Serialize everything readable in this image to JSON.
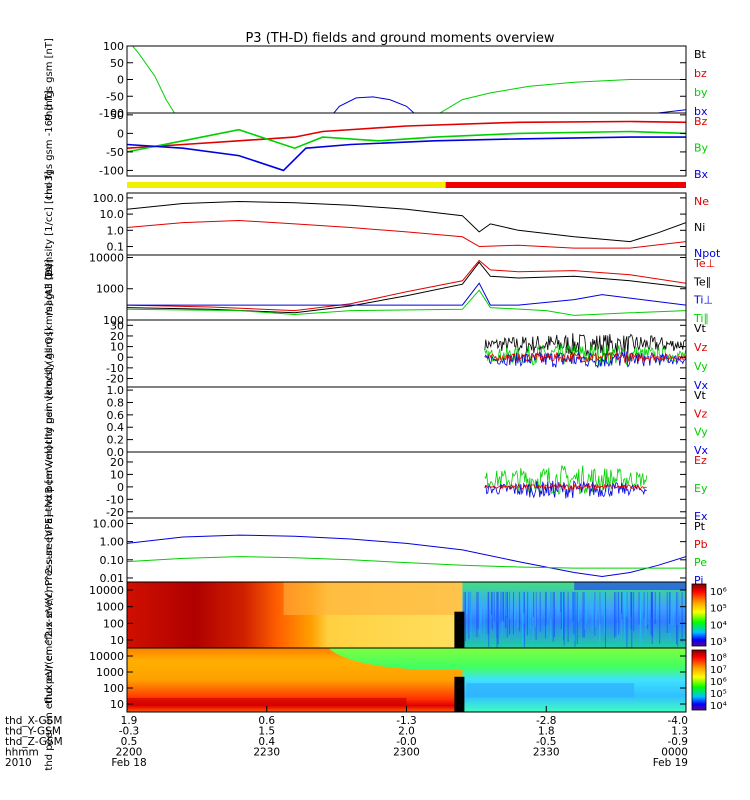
{
  "title": "P3 (TH-D) fields and ground moments overview",
  "colors": {
    "black": "#000000",
    "red": "#e00000",
    "green": "#00d000",
    "blue": "#0000e0",
    "yellow": "#f0f000",
    "barred": "#f00000"
  },
  "chart_data": [
    {
      "type": "line",
      "ylabel": "thd fgs gsm [nT]",
      "yticks": [
        "100",
        "50",
        "0",
        "-50",
        "-100"
      ],
      "ylim": [
        -100,
        100
      ],
      "legend": [
        "Bt",
        "bz",
        "by",
        "bx"
      ],
      "legend_colors": [
        "black",
        "red",
        "green",
        "blue"
      ],
      "series": [
        {
          "name": "by",
          "color": "green",
          "x": [
            0,
            0.02,
            0.05,
            0.07,
            0.1,
            0.54,
            0.56,
            0.6,
            0.65,
            0.72,
            0.8,
            0.9,
            1.0
          ],
          "y": [
            120,
            80,
            10,
            -60,
            -140,
            -140,
            -100,
            -60,
            -40,
            -20,
            -8,
            0,
            0
          ]
        },
        {
          "name": "bx",
          "color": "blue",
          "x": [
            0.36,
            0.38,
            0.41,
            0.44,
            0.47,
            0.5,
            0.52,
            0.54,
            0.85,
            0.9,
            0.95,
            1.0
          ],
          "y": [
            -120,
            -80,
            -55,
            -52,
            -60,
            -80,
            -110,
            -140,
            -140,
            -120,
            -100,
            -90
          ]
        }
      ]
    },
    {
      "type": "line",
      "ylabel": "thd fgs gsm -169 [nT]",
      "yticks": [
        "50",
        "0",
        "-50",
        "-100"
      ],
      "ylim": [
        -115,
        55
      ],
      "legend": [
        "Bz",
        "By",
        "Bx"
      ],
      "legend_colors": [
        "red",
        "green",
        "blue"
      ],
      "series": [
        {
          "name": "Bz",
          "color": "red",
          "x": [
            0,
            0.1,
            0.2,
            0.3,
            0.35,
            0.5,
            0.7,
            0.9,
            1.0
          ],
          "y": [
            -40,
            -30,
            -20,
            -10,
            5,
            20,
            30,
            32,
            30
          ]
        },
        {
          "name": "By",
          "color": "green",
          "x": [
            0,
            0.1,
            0.2,
            0.3,
            0.35,
            0.45,
            0.55,
            0.7,
            0.9,
            1.0
          ],
          "y": [
            -50,
            -20,
            10,
            -40,
            -10,
            -20,
            -10,
            0,
            5,
            0
          ]
        },
        {
          "name": "Bx",
          "color": "blue",
          "x": [
            0,
            0.1,
            0.2,
            0.28,
            0.32,
            0.4,
            0.55,
            0.7,
            0.9,
            1.0
          ],
          "y": [
            -30,
            -40,
            -60,
            -100,
            -40,
            -30,
            -20,
            -15,
            -10,
            -10
          ]
        }
      ]
    },
    {
      "type": "line",
      "ylabel": "Density [1/cc] [cm-3]",
      "yticks": [
        "100.0",
        "10.0",
        "1.0",
        "0.1"
      ],
      "log": true,
      "ylim": [
        0.03,
        200
      ],
      "legend": [
        "Ne",
        "Ni",
        "Npot"
      ],
      "legend_colors": [
        "red",
        "black",
        "blue"
      ],
      "series": [
        {
          "name": "Ni",
          "color": "black",
          "x": [
            0,
            0.1,
            0.2,
            0.3,
            0.4,
            0.5,
            0.6,
            0.63,
            0.65,
            0.7,
            0.8,
            0.9,
            0.95,
            1.0
          ],
          "y": [
            20,
            45,
            60,
            50,
            35,
            20,
            8,
            0.8,
            2.5,
            1.0,
            0.4,
            0.2,
            0.7,
            3
          ]
        },
        {
          "name": "Ne",
          "color": "red",
          "x": [
            0,
            0.1,
            0.2,
            0.3,
            0.4,
            0.5,
            0.6,
            0.63,
            0.7,
            0.8,
            0.9,
            1.0
          ],
          "y": [
            1.5,
            3,
            4,
            2.5,
            1.5,
            0.8,
            0.4,
            0.1,
            0.12,
            0.08,
            0.08,
            0.2
          ]
        }
      ]
    },
    {
      "type": "line",
      "ylabel": "magt3 [eV]",
      "yticks": [
        "10000",
        "1000",
        "100"
      ],
      "log": true,
      "ylim": [
        100,
        12000
      ],
      "legend": [
        "Te⊥",
        "Te∥",
        "Ti⊥",
        "Ti∥"
      ],
      "legend_colors": [
        "red",
        "black",
        "blue",
        "green"
      ],
      "series": [
        {
          "name": "Te⊥",
          "color": "red",
          "x": [
            0,
            0.15,
            0.3,
            0.4,
            0.5,
            0.6,
            0.63,
            0.65,
            0.7,
            0.8,
            0.9,
            1.0
          ],
          "y": [
            300,
            260,
            200,
            330,
            800,
            1800,
            8000,
            4000,
            3500,
            3800,
            2800,
            1500
          ]
        },
        {
          "name": "Te∥",
          "color": "black",
          "x": [
            0,
            0.15,
            0.3,
            0.4,
            0.5,
            0.6,
            0.63,
            0.65,
            0.7,
            0.8,
            0.9,
            1.0
          ],
          "y": [
            250,
            220,
            170,
            280,
            600,
            1400,
            7000,
            2500,
            2200,
            2500,
            1800,
            1100
          ]
        },
        {
          "name": "Ti⊥",
          "color": "blue",
          "x": [
            0,
            0.2,
            0.4,
            0.6,
            0.63,
            0.65,
            0.7,
            0.8,
            0.85,
            0.9,
            1.0
          ],
          "y": [
            300,
            300,
            300,
            300,
            1500,
            300,
            300,
            450,
            650,
            500,
            300
          ]
        },
        {
          "name": "Ti∥",
          "color": "green",
          "x": [
            0,
            0.2,
            0.3,
            0.4,
            0.6,
            0.63,
            0.65,
            0.75,
            0.8,
            0.9,
            1.0
          ],
          "y": [
            220,
            200,
            150,
            200,
            220,
            900,
            250,
            200,
            140,
            170,
            200
          ]
        }
      ]
    },
    {
      "type": "line",
      "ylabel": "thd peir velocity gsm [km/s] (All Qs)",
      "yticks": [
        "30",
        "20",
        "10",
        "0",
        "-10",
        "-20"
      ],
      "ylim": [
        -28,
        35
      ],
      "legend": [
        "Vt",
        "Vz",
        "Vy",
        "Vx"
      ],
      "legend_colors": [
        "black",
        "red",
        "green",
        "blue"
      ],
      "noisy_from": 0.64,
      "series": [
        {
          "name": "Vt",
          "color": "black",
          "center": 12,
          "amp": 9
        },
        {
          "name": "Vy",
          "color": "green",
          "center": 2,
          "amp": 9
        },
        {
          "name": "Vx",
          "color": "blue",
          "center": -2,
          "amp": 7
        },
        {
          "name": "Vz",
          "color": "red",
          "center": 0,
          "amp": 4
        }
      ]
    },
    {
      "type": "line",
      "ylabel": "thd peer velocity gsm [km/s] (All Qs)",
      "yticks": [
        "1.0",
        "0.8",
        "0.6",
        "0.4",
        "0.2",
        "0.0"
      ],
      "ylim": [
        0,
        1.05
      ],
      "legend": [
        "Vt",
        "Vz",
        "Vy",
        "Vx"
      ],
      "legend_colors": [
        "black",
        "red",
        "green",
        "blue"
      ],
      "series": []
    },
    {
      "type": "line",
      "ylabel": "E=-VxB [mV/m]",
      "yticks": [
        "20",
        "10",
        "0",
        "-10",
        "-20"
      ],
      "ylim": [
        -25,
        28
      ],
      "legend": [
        "Ez",
        "Ey",
        "Ex"
      ],
      "legend_colors": [
        "red",
        "green",
        "blue"
      ],
      "noisy_from": 0.64,
      "noisy_to": 0.93,
      "series": [
        {
          "name": "Ey",
          "color": "green",
          "center": 6,
          "amp": 10
        },
        {
          "name": "Ex",
          "color": "blue",
          "center": -2,
          "amp": 6
        },
        {
          "name": "Ez",
          "color": "red",
          "center": 0,
          "amp": 2
        }
      ]
    },
    {
      "type": "line",
      "ylabel": "Pressure [nPa]",
      "yticks": [
        "10.00",
        "1.00",
        "0.10",
        "0.01"
      ],
      "log": true,
      "ylim": [
        0.006,
        20
      ],
      "legend": [
        "Pt",
        "Pb",
        "Pe",
        "Pi"
      ],
      "legend_colors": [
        "black",
        "red",
        "green",
        "blue"
      ],
      "series": [
        {
          "name": "Pi",
          "color": "blue",
          "x": [
            0,
            0.1,
            0.2,
            0.3,
            0.4,
            0.5,
            0.6,
            0.7,
            0.8,
            0.85,
            0.9,
            0.95,
            1.0
          ],
          "y": [
            0.8,
            1.8,
            2.3,
            2.0,
            1.4,
            0.8,
            0.35,
            0.08,
            0.02,
            0.012,
            0.02,
            0.05,
            0.15
          ]
        },
        {
          "name": "Pe",
          "color": "green",
          "x": [
            0,
            0.1,
            0.2,
            0.3,
            0.4,
            0.5,
            0.6,
            0.7,
            0.8,
            0.9,
            1.0
          ],
          "y": [
            0.08,
            0.12,
            0.15,
            0.13,
            0.1,
            0.07,
            0.05,
            0.04,
            0.035,
            0.035,
            0.035
          ]
        }
      ]
    },
    {
      "type": "heatmap",
      "ylabel": "thd peir en eflux eV/(cm^2-s-sr-eV)",
      "yticks": [
        "10000",
        "1000",
        "100",
        "10"
      ],
      "colorbar_ticks": [
        "10⁶",
        "10⁵",
        "10⁴",
        "10³"
      ]
    },
    {
      "type": "heatmap",
      "ylabel": "thd peer en eflux eV/(cm^2-s-sr-eV)",
      "yticks": [
        "10000",
        "1000",
        "100",
        "10"
      ],
      "colorbar_ticks": [
        "10⁸",
        "10⁷",
        "10⁶",
        "10⁵",
        "10⁴"
      ]
    }
  ],
  "status_bar": {
    "segments": [
      {
        "from": 0,
        "to": 0.57,
        "color": "yellow"
      },
      {
        "from": 0.57,
        "to": 1.0,
        "color": "barred"
      }
    ]
  },
  "xaxis": {
    "row_labels": [
      "thd_X-GSM",
      "thd_Y-GSM",
      "thd_Z-GSM",
      "hhmm",
      "2010"
    ],
    "columns": [
      [
        "1.9",
        "-0.3",
        "0.5",
        "2200",
        "Feb 18"
      ],
      [
        "0.6",
        "1.5",
        "0.4",
        "2230",
        ""
      ],
      [
        "-1.3",
        "2.0",
        "-0.0",
        "2300",
        ""
      ],
      [
        "-2.8",
        "1.8",
        "-0.5",
        "2330",
        ""
      ],
      [
        "-4.0",
        "1.3",
        "-0.9",
        "0000",
        "Feb 19"
      ]
    ]
  }
}
